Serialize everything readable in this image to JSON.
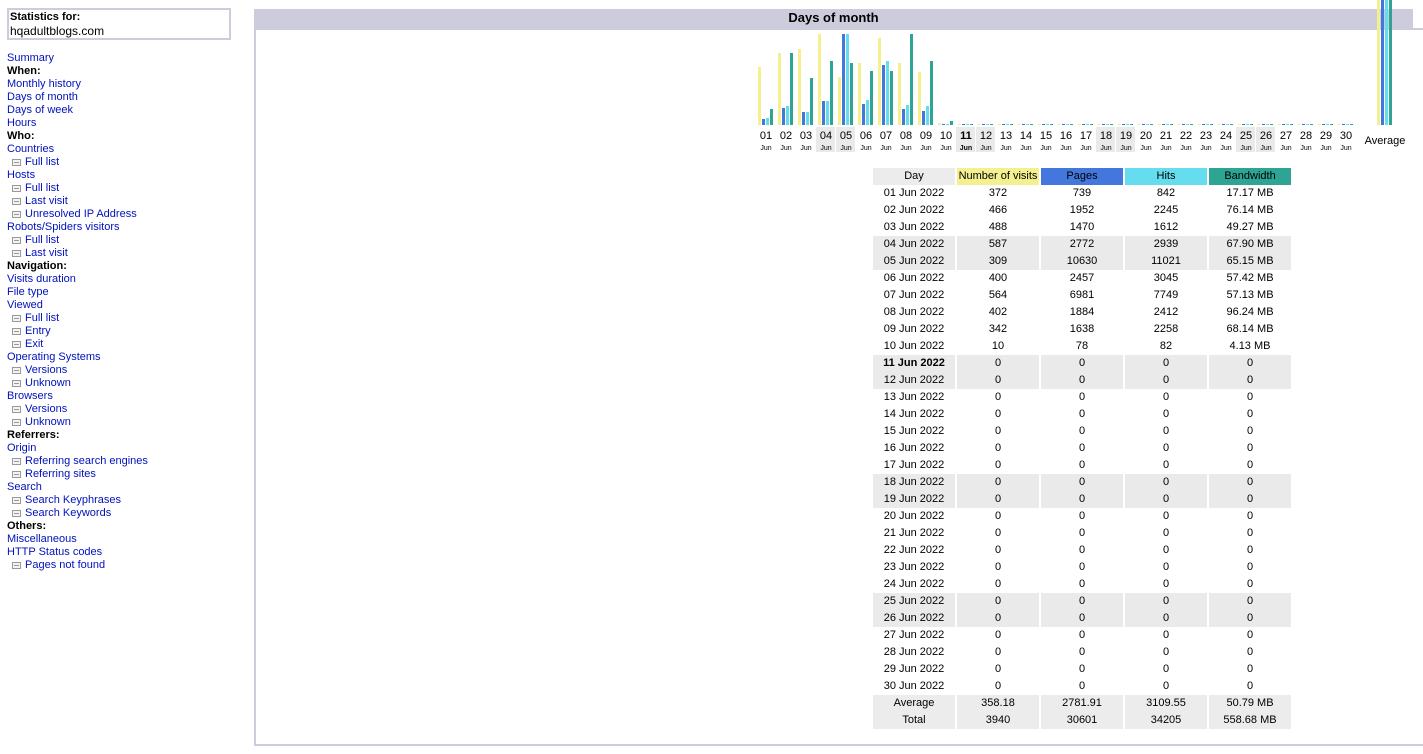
{
  "sidebar": {
    "stats_for_label": "Statistics for:",
    "domain": "hqadultblogs.com",
    "items": [
      {
        "type": "link",
        "label": "Summary",
        "name": "menu-summary"
      },
      {
        "type": "head",
        "label": "When:",
        "name": "menu-head-when"
      },
      {
        "type": "link",
        "label": "Monthly history",
        "name": "menu-monthly-history"
      },
      {
        "type": "link",
        "label": "Days of month",
        "name": "menu-days-of-month"
      },
      {
        "type": "link",
        "label": "Days of week",
        "name": "menu-days-of-week"
      },
      {
        "type": "link",
        "label": "Hours",
        "name": "menu-hours"
      },
      {
        "type": "head",
        "label": "Who:",
        "name": "menu-head-who"
      },
      {
        "type": "link",
        "label": "Countries",
        "name": "menu-countries"
      },
      {
        "type": "sub",
        "label": "Full list",
        "name": "menu-countries-full-list"
      },
      {
        "type": "link",
        "label": "Hosts",
        "name": "menu-hosts"
      },
      {
        "type": "sub",
        "label": "Full list",
        "name": "menu-hosts-full-list"
      },
      {
        "type": "sub",
        "label": "Last visit",
        "name": "menu-hosts-last-visit"
      },
      {
        "type": "sub",
        "label": "Unresolved IP Address",
        "name": "menu-hosts-unresolved-ip"
      },
      {
        "type": "link",
        "label": "Robots/Spiders visitors",
        "name": "menu-robots"
      },
      {
        "type": "sub",
        "label": "Full list",
        "name": "menu-robots-full-list"
      },
      {
        "type": "sub",
        "label": "Last visit",
        "name": "menu-robots-last-visit"
      },
      {
        "type": "head",
        "label": "Navigation:",
        "name": "menu-head-navigation"
      },
      {
        "type": "link",
        "label": "Visits duration",
        "name": "menu-visits-duration"
      },
      {
        "type": "link",
        "label": "File type",
        "name": "menu-file-type"
      },
      {
        "type": "link",
        "label": "Viewed",
        "name": "menu-viewed"
      },
      {
        "type": "sub",
        "label": "Full list",
        "name": "menu-viewed-full-list"
      },
      {
        "type": "sub",
        "label": "Entry",
        "name": "menu-viewed-entry"
      },
      {
        "type": "sub",
        "label": "Exit",
        "name": "menu-viewed-exit"
      },
      {
        "type": "link",
        "label": "Operating Systems",
        "name": "menu-os"
      },
      {
        "type": "sub",
        "label": "Versions",
        "name": "menu-os-versions"
      },
      {
        "type": "sub",
        "label": "Unknown",
        "name": "menu-os-unknown"
      },
      {
        "type": "link",
        "label": "Browsers",
        "name": "menu-browsers"
      },
      {
        "type": "sub",
        "label": "Versions",
        "name": "menu-browsers-versions"
      },
      {
        "type": "sub",
        "label": "Unknown",
        "name": "menu-browsers-unknown"
      },
      {
        "type": "head",
        "label": "Referrers:",
        "name": "menu-head-referrers"
      },
      {
        "type": "link",
        "label": "Origin",
        "name": "menu-origin"
      },
      {
        "type": "sub",
        "label": "Referring search engines",
        "name": "menu-referring-search-engines"
      },
      {
        "type": "sub",
        "label": "Referring sites",
        "name": "menu-referring-sites"
      },
      {
        "type": "link",
        "label": "Search",
        "name": "menu-search"
      },
      {
        "type": "sub",
        "label": "Search Keyphrases",
        "name": "menu-search-keyphrases"
      },
      {
        "type": "sub",
        "label": "Search Keywords",
        "name": "menu-search-keywords"
      },
      {
        "type": "head",
        "label": "Others:",
        "name": "menu-head-others"
      },
      {
        "type": "link",
        "label": "Miscellaneous",
        "name": "menu-miscellaneous"
      },
      {
        "type": "link",
        "label": "HTTP Status codes",
        "name": "menu-http-status"
      },
      {
        "type": "sub",
        "label": "Pages not found",
        "name": "menu-pages-not-found"
      }
    ]
  },
  "main": {
    "title": "Days of month"
  },
  "colors": {
    "visits": "#f4f090",
    "pages": "#4477dd",
    "hits": "#66ddee",
    "bandwidth": "#2ea495",
    "weekend": "#eaeaea",
    "header": "#ccccdd"
  },
  "chart_data": {
    "type": "bar",
    "categories": [
      "01",
      "02",
      "03",
      "04",
      "05",
      "06",
      "07",
      "08",
      "09",
      "10",
      "11",
      "12",
      "13",
      "14",
      "15",
      "16",
      "17",
      "18",
      "19",
      "20",
      "21",
      "22",
      "23",
      "24",
      "25",
      "26",
      "27",
      "28",
      "29",
      "30"
    ],
    "month_label": "Jun",
    "average_label": "Average",
    "today_index": 10,
    "weekend_indices": [
      3,
      4,
      10,
      11,
      17,
      18,
      24,
      25
    ],
    "series": [
      {
        "key": "visits",
        "values": [
          372,
          466,
          488,
          587,
          309,
          400,
          564,
          402,
          342,
          10,
          0,
          0,
          0,
          0,
          0,
          0,
          0,
          0,
          0,
          0,
          0,
          0,
          0,
          0,
          0,
          0,
          0,
          0,
          0,
          0
        ],
        "average": 358.18
      },
      {
        "key": "pages",
        "values": [
          739,
          1952,
          1470,
          2772,
          10630,
          2457,
          6981,
          1884,
          1638,
          78,
          0,
          0,
          0,
          0,
          0,
          0,
          0,
          0,
          0,
          0,
          0,
          0,
          0,
          0,
          0,
          0,
          0,
          0,
          0,
          0
        ],
        "average": 2781.91
      },
      {
        "key": "hits",
        "values": [
          842,
          2245,
          1612,
          2939,
          11021,
          3045,
          7749,
          2412,
          2258,
          82,
          0,
          0,
          0,
          0,
          0,
          0,
          0,
          0,
          0,
          0,
          0,
          0,
          0,
          0,
          0,
          0,
          0,
          0,
          0,
          0
        ],
        "average": 3109.55
      },
      {
        "key": "bandwidth",
        "values": [
          17.17,
          76.14,
          49.27,
          67.9,
          65.15,
          57.42,
          57.13,
          96.24,
          68.14,
          4.13,
          0,
          0,
          0,
          0,
          0,
          0,
          0,
          0,
          0,
          0,
          0,
          0,
          0,
          0,
          0,
          0,
          0,
          0,
          0,
          0
        ],
        "average": 50.79
      }
    ]
  },
  "table": {
    "headers": {
      "day": "Day",
      "visits": "Number of visits",
      "pages": "Pages",
      "hits": "Hits",
      "bandwidth": "Bandwidth"
    },
    "rows": [
      {
        "day": "01 Jun 2022",
        "visits": "372",
        "pages": "739",
        "hits": "842",
        "bandwidth": "17.17 MB"
      },
      {
        "day": "02 Jun 2022",
        "visits": "466",
        "pages": "1952",
        "hits": "2245",
        "bandwidth": "76.14 MB"
      },
      {
        "day": "03 Jun 2022",
        "visits": "488",
        "pages": "1470",
        "hits": "1612",
        "bandwidth": "49.27 MB"
      },
      {
        "day": "04 Jun 2022",
        "visits": "587",
        "pages": "2772",
        "hits": "2939",
        "bandwidth": "67.90 MB"
      },
      {
        "day": "05 Jun 2022",
        "visits": "309",
        "pages": "10630",
        "hits": "11021",
        "bandwidth": "65.15 MB"
      },
      {
        "day": "06 Jun 2022",
        "visits": "400",
        "pages": "2457",
        "hits": "3045",
        "bandwidth": "57.42 MB"
      },
      {
        "day": "07 Jun 2022",
        "visits": "564",
        "pages": "6981",
        "hits": "7749",
        "bandwidth": "57.13 MB"
      },
      {
        "day": "08 Jun 2022",
        "visits": "402",
        "pages": "1884",
        "hits": "2412",
        "bandwidth": "96.24 MB"
      },
      {
        "day": "09 Jun 2022",
        "visits": "342",
        "pages": "1638",
        "hits": "2258",
        "bandwidth": "68.14 MB"
      },
      {
        "day": "10 Jun 2022",
        "visits": "10",
        "pages": "78",
        "hits": "82",
        "bandwidth": "4.13 MB"
      },
      {
        "day": "11 Jun 2022",
        "visits": "0",
        "pages": "0",
        "hits": "0",
        "bandwidth": "0"
      },
      {
        "day": "12 Jun 2022",
        "visits": "0",
        "pages": "0",
        "hits": "0",
        "bandwidth": "0"
      },
      {
        "day": "13 Jun 2022",
        "visits": "0",
        "pages": "0",
        "hits": "0",
        "bandwidth": "0"
      },
      {
        "day": "14 Jun 2022",
        "visits": "0",
        "pages": "0",
        "hits": "0",
        "bandwidth": "0"
      },
      {
        "day": "15 Jun 2022",
        "visits": "0",
        "pages": "0",
        "hits": "0",
        "bandwidth": "0"
      },
      {
        "day": "16 Jun 2022",
        "visits": "0",
        "pages": "0",
        "hits": "0",
        "bandwidth": "0"
      },
      {
        "day": "17 Jun 2022",
        "visits": "0",
        "pages": "0",
        "hits": "0",
        "bandwidth": "0"
      },
      {
        "day": "18 Jun 2022",
        "visits": "0",
        "pages": "0",
        "hits": "0",
        "bandwidth": "0"
      },
      {
        "day": "19 Jun 2022",
        "visits": "0",
        "pages": "0",
        "hits": "0",
        "bandwidth": "0"
      },
      {
        "day": "20 Jun 2022",
        "visits": "0",
        "pages": "0",
        "hits": "0",
        "bandwidth": "0"
      },
      {
        "day": "21 Jun 2022",
        "visits": "0",
        "pages": "0",
        "hits": "0",
        "bandwidth": "0"
      },
      {
        "day": "22 Jun 2022",
        "visits": "0",
        "pages": "0",
        "hits": "0",
        "bandwidth": "0"
      },
      {
        "day": "23 Jun 2022",
        "visits": "0",
        "pages": "0",
        "hits": "0",
        "bandwidth": "0"
      },
      {
        "day": "24 Jun 2022",
        "visits": "0",
        "pages": "0",
        "hits": "0",
        "bandwidth": "0"
      },
      {
        "day": "25 Jun 2022",
        "visits": "0",
        "pages": "0",
        "hits": "0",
        "bandwidth": "0"
      },
      {
        "day": "26 Jun 2022",
        "visits": "0",
        "pages": "0",
        "hits": "0",
        "bandwidth": "0"
      },
      {
        "day": "27 Jun 2022",
        "visits": "0",
        "pages": "0",
        "hits": "0",
        "bandwidth": "0"
      },
      {
        "day": "28 Jun 2022",
        "visits": "0",
        "pages": "0",
        "hits": "0",
        "bandwidth": "0"
      },
      {
        "day": "29 Jun 2022",
        "visits": "0",
        "pages": "0",
        "hits": "0",
        "bandwidth": "0"
      },
      {
        "day": "30 Jun 2022",
        "visits": "0",
        "pages": "0",
        "hits": "0",
        "bandwidth": "0"
      }
    ],
    "average": {
      "day": "Average",
      "visits": "358.18",
      "pages": "2781.91",
      "hits": "3109.55",
      "bandwidth": "50.79 MB"
    },
    "total": {
      "day": "Total",
      "visits": "3940",
      "pages": "30601",
      "hits": "34205",
      "bandwidth": "558.68 MB"
    }
  }
}
